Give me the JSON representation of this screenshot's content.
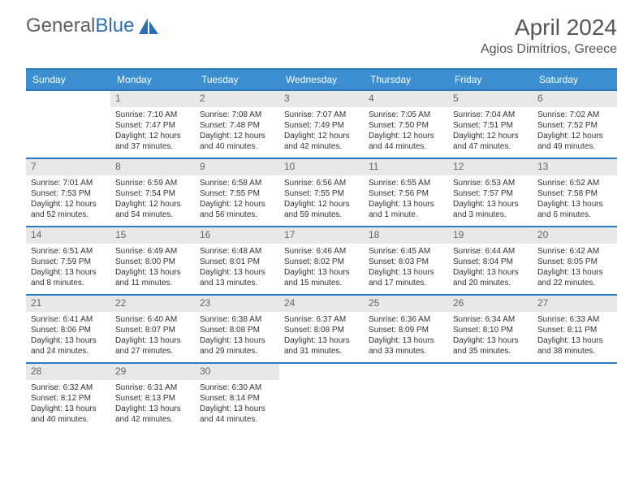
{
  "logo": {
    "text1": "General",
    "text2": "Blue"
  },
  "title": "April 2024",
  "location": "Agios Dimitrios, Greece",
  "daynames": [
    "Sunday",
    "Monday",
    "Tuesday",
    "Wednesday",
    "Thursday",
    "Friday",
    "Saturday"
  ],
  "colors": {
    "header_bg": "#3b8ed0",
    "border": "#2a7ac0",
    "daynum_bg": "#e8e8e8"
  },
  "weeks": [
    [
      {
        "n": "",
        "sr": "",
        "ss": "",
        "dl": ""
      },
      {
        "n": "1",
        "sr": "Sunrise: 7:10 AM",
        "ss": "Sunset: 7:47 PM",
        "dl": "Daylight: 12 hours and 37 minutes."
      },
      {
        "n": "2",
        "sr": "Sunrise: 7:08 AM",
        "ss": "Sunset: 7:48 PM",
        "dl": "Daylight: 12 hours and 40 minutes."
      },
      {
        "n": "3",
        "sr": "Sunrise: 7:07 AM",
        "ss": "Sunset: 7:49 PM",
        "dl": "Daylight: 12 hours and 42 minutes."
      },
      {
        "n": "4",
        "sr": "Sunrise: 7:05 AM",
        "ss": "Sunset: 7:50 PM",
        "dl": "Daylight: 12 hours and 44 minutes."
      },
      {
        "n": "5",
        "sr": "Sunrise: 7:04 AM",
        "ss": "Sunset: 7:51 PM",
        "dl": "Daylight: 12 hours and 47 minutes."
      },
      {
        "n": "6",
        "sr": "Sunrise: 7:02 AM",
        "ss": "Sunset: 7:52 PM",
        "dl": "Daylight: 12 hours and 49 minutes."
      }
    ],
    [
      {
        "n": "7",
        "sr": "Sunrise: 7:01 AM",
        "ss": "Sunset: 7:53 PM",
        "dl": "Daylight: 12 hours and 52 minutes."
      },
      {
        "n": "8",
        "sr": "Sunrise: 6:59 AM",
        "ss": "Sunset: 7:54 PM",
        "dl": "Daylight: 12 hours and 54 minutes."
      },
      {
        "n": "9",
        "sr": "Sunrise: 6:58 AM",
        "ss": "Sunset: 7:55 PM",
        "dl": "Daylight: 12 hours and 56 minutes."
      },
      {
        "n": "10",
        "sr": "Sunrise: 6:56 AM",
        "ss": "Sunset: 7:55 PM",
        "dl": "Daylight: 12 hours and 59 minutes."
      },
      {
        "n": "11",
        "sr": "Sunrise: 6:55 AM",
        "ss": "Sunset: 7:56 PM",
        "dl": "Daylight: 13 hours and 1 minute."
      },
      {
        "n": "12",
        "sr": "Sunrise: 6:53 AM",
        "ss": "Sunset: 7:57 PM",
        "dl": "Daylight: 13 hours and 3 minutes."
      },
      {
        "n": "13",
        "sr": "Sunrise: 6:52 AM",
        "ss": "Sunset: 7:58 PM",
        "dl": "Daylight: 13 hours and 6 minutes."
      }
    ],
    [
      {
        "n": "14",
        "sr": "Sunrise: 6:51 AM",
        "ss": "Sunset: 7:59 PM",
        "dl": "Daylight: 13 hours and 8 minutes."
      },
      {
        "n": "15",
        "sr": "Sunrise: 6:49 AM",
        "ss": "Sunset: 8:00 PM",
        "dl": "Daylight: 13 hours and 11 minutes."
      },
      {
        "n": "16",
        "sr": "Sunrise: 6:48 AM",
        "ss": "Sunset: 8:01 PM",
        "dl": "Daylight: 13 hours and 13 minutes."
      },
      {
        "n": "17",
        "sr": "Sunrise: 6:46 AM",
        "ss": "Sunset: 8:02 PM",
        "dl": "Daylight: 13 hours and 15 minutes."
      },
      {
        "n": "18",
        "sr": "Sunrise: 6:45 AM",
        "ss": "Sunset: 8:03 PM",
        "dl": "Daylight: 13 hours and 17 minutes."
      },
      {
        "n": "19",
        "sr": "Sunrise: 6:44 AM",
        "ss": "Sunset: 8:04 PM",
        "dl": "Daylight: 13 hours and 20 minutes."
      },
      {
        "n": "20",
        "sr": "Sunrise: 6:42 AM",
        "ss": "Sunset: 8:05 PM",
        "dl": "Daylight: 13 hours and 22 minutes."
      }
    ],
    [
      {
        "n": "21",
        "sr": "Sunrise: 6:41 AM",
        "ss": "Sunset: 8:06 PM",
        "dl": "Daylight: 13 hours and 24 minutes."
      },
      {
        "n": "22",
        "sr": "Sunrise: 6:40 AM",
        "ss": "Sunset: 8:07 PM",
        "dl": "Daylight: 13 hours and 27 minutes."
      },
      {
        "n": "23",
        "sr": "Sunrise: 6:38 AM",
        "ss": "Sunset: 8:08 PM",
        "dl": "Daylight: 13 hours and 29 minutes."
      },
      {
        "n": "24",
        "sr": "Sunrise: 6:37 AM",
        "ss": "Sunset: 8:08 PM",
        "dl": "Daylight: 13 hours and 31 minutes."
      },
      {
        "n": "25",
        "sr": "Sunrise: 6:36 AM",
        "ss": "Sunset: 8:09 PM",
        "dl": "Daylight: 13 hours and 33 minutes."
      },
      {
        "n": "26",
        "sr": "Sunrise: 6:34 AM",
        "ss": "Sunset: 8:10 PM",
        "dl": "Daylight: 13 hours and 35 minutes."
      },
      {
        "n": "27",
        "sr": "Sunrise: 6:33 AM",
        "ss": "Sunset: 8:11 PM",
        "dl": "Daylight: 13 hours and 38 minutes."
      }
    ],
    [
      {
        "n": "28",
        "sr": "Sunrise: 6:32 AM",
        "ss": "Sunset: 8:12 PM",
        "dl": "Daylight: 13 hours and 40 minutes."
      },
      {
        "n": "29",
        "sr": "Sunrise: 6:31 AM",
        "ss": "Sunset: 8:13 PM",
        "dl": "Daylight: 13 hours and 42 minutes."
      },
      {
        "n": "30",
        "sr": "Sunrise: 6:30 AM",
        "ss": "Sunset: 8:14 PM",
        "dl": "Daylight: 13 hours and 44 minutes."
      },
      {
        "n": "",
        "sr": "",
        "ss": "",
        "dl": ""
      },
      {
        "n": "",
        "sr": "",
        "ss": "",
        "dl": ""
      },
      {
        "n": "",
        "sr": "",
        "ss": "",
        "dl": ""
      },
      {
        "n": "",
        "sr": "",
        "ss": "",
        "dl": ""
      }
    ]
  ]
}
